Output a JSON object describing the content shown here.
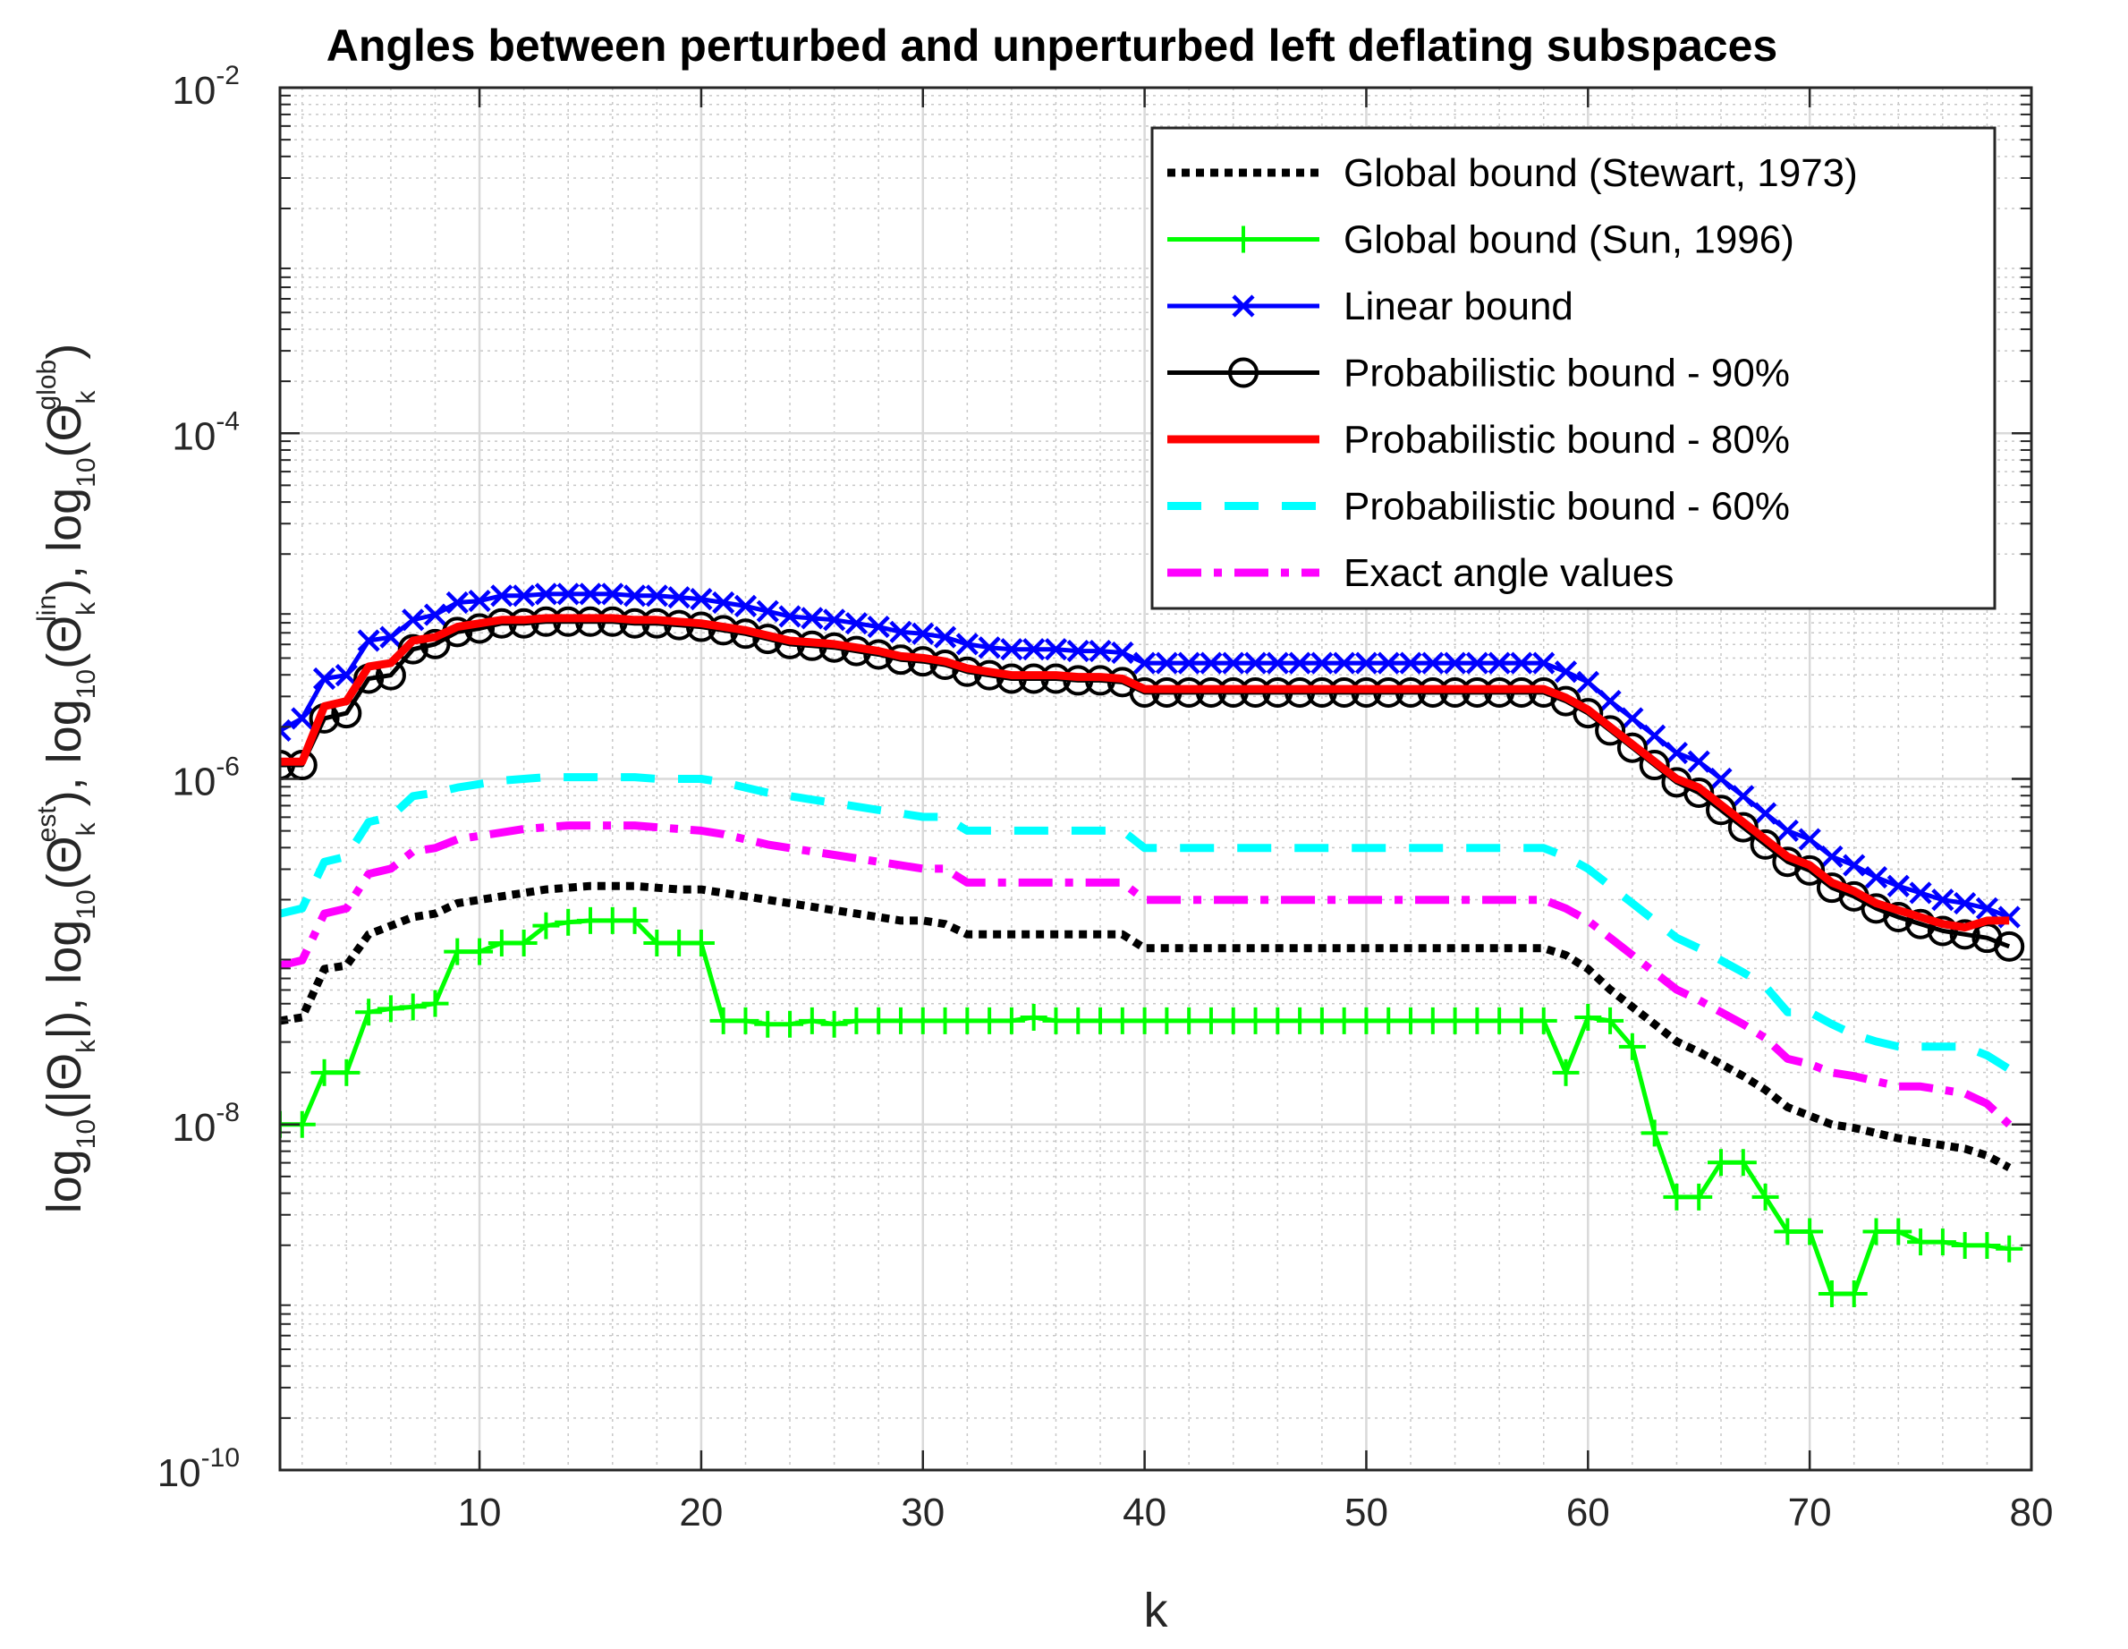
{
  "chart_data": {
    "type": "line",
    "title": "Angles between perturbed and unperturbed left deflating subspaces",
    "xlabel": "k",
    "ylabel": "log10(|Θk|), log10(Θk^est), log10(Θk^lin), log10(Θk^glob)",
    "ylabel_parts": {
      "t1": "log",
      "s1": "10",
      "t2": "(|Θ",
      "s2": "k",
      "t3": "|), log",
      "s3": "10",
      "t4": "(Θ",
      "s4": "k",
      "p4": "est",
      "t5": "), log",
      "s5": "10",
      "t6": "(Θ",
      "s6": "k",
      "p6": "lin",
      "t7": "), log",
      "s7": "10",
      "t8": "(Θ",
      "s8": "k",
      "p8": "glob",
      "t9": ")"
    },
    "xlim": [
      1,
      80
    ],
    "ylim": [
      1e-10,
      0.01
    ],
    "yscale": "log",
    "grid": true,
    "minor_grid": true,
    "legend_position": "top-right",
    "x_ticks": [
      10,
      20,
      30,
      40,
      50,
      60,
      70,
      80
    ],
    "x_tick_labels": [
      "10",
      "20",
      "30",
      "40",
      "50",
      "60",
      "70",
      "80"
    ],
    "y_ticks": [
      -10,
      -8,
      -6,
      -4,
      -2
    ],
    "y_tick_base": "10",
    "y_tick_exponents": [
      "-10",
      "-8",
      "-6",
      "-4",
      "-2"
    ],
    "x_start": 1,
    "series": [
      {
        "name": "Global bound (Stewart, 1973)",
        "color": "#000000",
        "style": "dotted",
        "marker": "none",
        "log10_values": [
          -7.4,
          -7.38,
          -7.1,
          -7.08,
          -6.9,
          -6.85,
          -6.8,
          -6.78,
          -6.72,
          -6.7,
          -6.68,
          -6.66,
          -6.64,
          -6.63,
          -6.62,
          -6.62,
          -6.62,
          -6.63,
          -6.64,
          -6.64,
          -6.66,
          -6.68,
          -6.7,
          -6.72,
          -6.74,
          -6.76,
          -6.78,
          -6.8,
          -6.82,
          -6.82,
          -6.84,
          -6.9,
          -6.9,
          -6.9,
          -6.9,
          -6.9,
          -6.9,
          -6.9,
          -6.9,
          -6.98,
          -6.98,
          -6.98,
          -6.98,
          -6.98,
          -6.98,
          -6.98,
          -6.98,
          -6.98,
          -6.98,
          -6.98,
          -6.98,
          -6.98,
          -6.98,
          -6.98,
          -6.98,
          -6.98,
          -6.98,
          -6.98,
          -7.02,
          -7.1,
          -7.22,
          -7.32,
          -7.42,
          -7.52,
          -7.58,
          -7.65,
          -7.72,
          -7.8,
          -7.9,
          -7.95,
          -8.0,
          -8.02,
          -8.05,
          -8.08,
          -8.1,
          -8.12,
          -8.14,
          -8.18,
          -8.25
        ]
      },
      {
        "name": "Global bound (Sun, 1996)",
        "color": "#00ff00",
        "style": "solid",
        "marker": "plus",
        "log10_values": [
          -8.0,
          -8.0,
          -7.7,
          -7.7,
          -7.35,
          -7.33,
          -7.32,
          -7.3,
          -7.0,
          -7.0,
          -6.95,
          -6.95,
          -6.85,
          -6.83,
          -6.82,
          -6.82,
          -6.82,
          -6.95,
          -6.95,
          -6.95,
          -7.4,
          -7.4,
          -7.42,
          -7.42,
          -7.4,
          -7.42,
          -7.4,
          -7.4,
          -7.4,
          -7.4,
          -7.4,
          -7.4,
          -7.4,
          -7.4,
          -7.38,
          -7.4,
          -7.4,
          -7.4,
          -7.4,
          -7.4,
          -7.4,
          -7.4,
          -7.4,
          -7.4,
          -7.4,
          -7.4,
          -7.4,
          -7.4,
          -7.4,
          -7.4,
          -7.4,
          -7.4,
          -7.4,
          -7.4,
          -7.4,
          -7.4,
          -7.4,
          -7.4,
          -7.7,
          -7.38,
          -7.4,
          -7.55,
          -8.05,
          -8.42,
          -8.42,
          -8.22,
          -8.22,
          -8.42,
          -8.62,
          -8.62,
          -8.98,
          -8.98,
          -8.62,
          -8.62,
          -8.68,
          -8.68,
          -8.7,
          -8.7,
          -8.72
        ]
      },
      {
        "name": "Linear bound",
        "color": "#0000ff",
        "style": "solid",
        "marker": "cross",
        "log10_values": [
          -5.72,
          -5.65,
          -5.42,
          -5.4,
          -5.2,
          -5.18,
          -5.08,
          -5.05,
          -4.98,
          -4.97,
          -4.94,
          -4.94,
          -4.93,
          -4.93,
          -4.93,
          -4.93,
          -4.94,
          -4.94,
          -4.95,
          -4.96,
          -4.98,
          -5.0,
          -5.03,
          -5.06,
          -5.07,
          -5.08,
          -5.1,
          -5.12,
          -5.15,
          -5.16,
          -5.18,
          -5.22,
          -5.24,
          -5.25,
          -5.25,
          -5.25,
          -5.26,
          -5.26,
          -5.27,
          -5.33,
          -5.33,
          -5.33,
          -5.33,
          -5.33,
          -5.33,
          -5.33,
          -5.33,
          -5.33,
          -5.33,
          -5.33,
          -5.33,
          -5.33,
          -5.33,
          -5.33,
          -5.33,
          -5.33,
          -5.33,
          -5.33,
          -5.38,
          -5.44,
          -5.55,
          -5.65,
          -5.75,
          -5.85,
          -5.9,
          -6.0,
          -6.1,
          -6.2,
          -6.3,
          -6.35,
          -6.45,
          -6.5,
          -6.57,
          -6.62,
          -6.66,
          -6.7,
          -6.72,
          -6.75,
          -6.8
        ]
      },
      {
        "name": "Probabilistic bound - 90%",
        "color": "#000000",
        "style": "solid",
        "marker": "circle",
        "log10_values": [
          -5.92,
          -5.92,
          -5.65,
          -5.62,
          -5.42,
          -5.4,
          -5.25,
          -5.22,
          -5.15,
          -5.13,
          -5.1,
          -5.1,
          -5.09,
          -5.09,
          -5.09,
          -5.09,
          -5.1,
          -5.1,
          -5.11,
          -5.12,
          -5.14,
          -5.16,
          -5.19,
          -5.22,
          -5.23,
          -5.24,
          -5.26,
          -5.28,
          -5.31,
          -5.32,
          -5.34,
          -5.38,
          -5.4,
          -5.42,
          -5.42,
          -5.42,
          -5.43,
          -5.43,
          -5.44,
          -5.5,
          -5.5,
          -5.5,
          -5.5,
          -5.5,
          -5.5,
          -5.5,
          -5.5,
          -5.5,
          -5.5,
          -5.5,
          -5.5,
          -5.5,
          -5.5,
          -5.5,
          -5.5,
          -5.5,
          -5.5,
          -5.5,
          -5.55,
          -5.62,
          -5.72,
          -5.82,
          -5.92,
          -6.02,
          -6.08,
          -6.18,
          -6.28,
          -6.38,
          -6.48,
          -6.53,
          -6.63,
          -6.68,
          -6.75,
          -6.8,
          -6.84,
          -6.88,
          -6.9,
          -6.92,
          -6.97
        ]
      },
      {
        "name": "Probabilistic bound - 80%",
        "color": "#ff0000",
        "style": "solid",
        "marker": "none",
        "log10_values": [
          -5.9,
          -5.9,
          -5.58,
          -5.55,
          -5.35,
          -5.33,
          -5.2,
          -5.18,
          -5.12,
          -5.1,
          -5.08,
          -5.08,
          -5.07,
          -5.07,
          -5.07,
          -5.07,
          -5.08,
          -5.08,
          -5.09,
          -5.1,
          -5.12,
          -5.14,
          -5.17,
          -5.2,
          -5.21,
          -5.22,
          -5.24,
          -5.26,
          -5.29,
          -5.3,
          -5.32,
          -5.36,
          -5.38,
          -5.4,
          -5.4,
          -5.4,
          -5.41,
          -5.41,
          -5.42,
          -5.48,
          -5.48,
          -5.48,
          -5.48,
          -5.48,
          -5.48,
          -5.48,
          -5.48,
          -5.48,
          -5.48,
          -5.48,
          -5.48,
          -5.48,
          -5.48,
          -5.48,
          -5.48,
          -5.48,
          -5.48,
          -5.48,
          -5.53,
          -5.6,
          -5.7,
          -5.8,
          -5.9,
          -6.0,
          -6.05,
          -6.15,
          -6.25,
          -6.35,
          -6.45,
          -6.5,
          -6.6,
          -6.65,
          -6.72,
          -6.76,
          -6.8,
          -6.84,
          -6.86,
          -6.82,
          -6.82
        ]
      },
      {
        "name": "Probabilistic bound - 60%",
        "color": "#00ffff",
        "style": "dashed",
        "marker": "none",
        "log10_values": [
          -6.78,
          -6.75,
          -6.48,
          -6.45,
          -6.25,
          -6.22,
          -6.1,
          -6.08,
          -6.05,
          -6.03,
          -6.01,
          -6.0,
          -5.99,
          -5.99,
          -5.99,
          -5.99,
          -5.99,
          -6.0,
          -6.0,
          -6.0,
          -6.02,
          -6.05,
          -6.08,
          -6.1,
          -6.12,
          -6.14,
          -6.16,
          -6.18,
          -6.2,
          -6.22,
          -6.22,
          -6.3,
          -6.3,
          -6.3,
          -6.3,
          -6.3,
          -6.3,
          -6.3,
          -6.3,
          -6.4,
          -6.4,
          -6.4,
          -6.4,
          -6.4,
          -6.4,
          -6.4,
          -6.4,
          -6.4,
          -6.4,
          -6.4,
          -6.4,
          -6.4,
          -6.4,
          -6.4,
          -6.4,
          -6.4,
          -6.4,
          -6.4,
          -6.45,
          -6.52,
          -6.62,
          -6.72,
          -6.82,
          -6.92,
          -6.98,
          -7.05,
          -7.12,
          -7.2,
          -7.35,
          -7.35,
          -7.42,
          -7.48,
          -7.52,
          -7.55,
          -7.55,
          -7.55,
          -7.55,
          -7.6,
          -7.68
        ]
      },
      {
        "name": "Exact angle values",
        "color": "#ff00ff",
        "style": "dashdot",
        "marker": "none",
        "log10_values": [
          -7.08,
          -7.05,
          -6.78,
          -6.75,
          -6.55,
          -6.52,
          -6.42,
          -6.4,
          -6.35,
          -6.33,
          -6.31,
          -6.29,
          -6.28,
          -6.27,
          -6.27,
          -6.27,
          -6.27,
          -6.28,
          -6.29,
          -6.3,
          -6.32,
          -6.35,
          -6.38,
          -6.4,
          -6.42,
          -6.44,
          -6.46,
          -6.48,
          -6.5,
          -6.52,
          -6.52,
          -6.6,
          -6.6,
          -6.6,
          -6.6,
          -6.6,
          -6.6,
          -6.6,
          -6.6,
          -6.7,
          -6.7,
          -6.7,
          -6.7,
          -6.7,
          -6.7,
          -6.7,
          -6.7,
          -6.7,
          -6.7,
          -6.7,
          -6.7,
          -6.7,
          -6.7,
          -6.7,
          -6.7,
          -6.7,
          -6.7,
          -6.7,
          -6.75,
          -6.82,
          -6.92,
          -7.02,
          -7.12,
          -7.22,
          -7.28,
          -7.35,
          -7.42,
          -7.5,
          -7.62,
          -7.65,
          -7.7,
          -7.72,
          -7.75,
          -7.78,
          -7.78,
          -7.8,
          -7.82,
          -7.88,
          -8.0
        ]
      }
    ]
  }
}
